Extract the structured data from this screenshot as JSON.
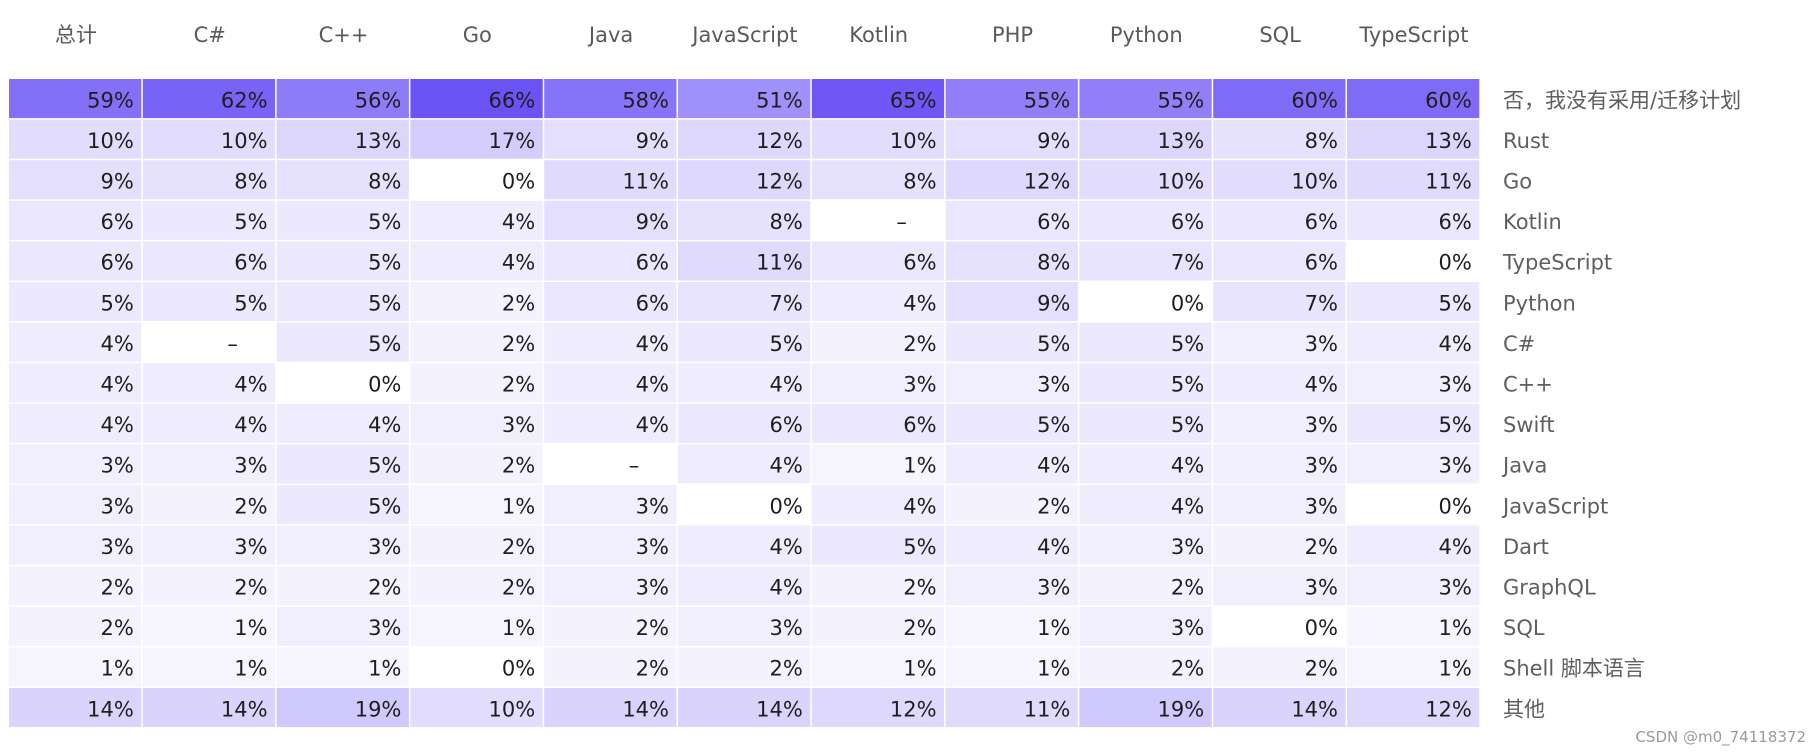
{
  "colors": {
    "scale_high": "#6b52f5",
    "scale_low": "#ffffff",
    "cell_text": "#1e1e1e",
    "header_text": "#5a5a5a",
    "label_text": "#5f5f5f"
  },
  "chart_data": {
    "type": "heatmap",
    "title": "",
    "columns": [
      "总计",
      "C#",
      "C++",
      "Go",
      "Java",
      "JavaScript",
      "Kotlin",
      "PHP",
      "Python",
      "SQL",
      "TypeScript"
    ],
    "rows": [
      {
        "label": "否，我没有采用/迁移计划",
        "values": [
          "59%",
          "62%",
          "56%",
          "66%",
          "58%",
          "51%",
          "65%",
          "55%",
          "55%",
          "60%",
          "60%"
        ]
      },
      {
        "label": "Rust",
        "values": [
          "10%",
          "10%",
          "13%",
          "17%",
          "9%",
          "12%",
          "10%",
          "9%",
          "13%",
          "8%",
          "13%"
        ]
      },
      {
        "label": "Go",
        "values": [
          "9%",
          "8%",
          "8%",
          "0%",
          "11%",
          "12%",
          "8%",
          "12%",
          "10%",
          "10%",
          "11%"
        ]
      },
      {
        "label": "Kotlin",
        "values": [
          "6%",
          "5%",
          "5%",
          "4%",
          "9%",
          "8%",
          "–",
          "6%",
          "6%",
          "6%",
          "6%"
        ]
      },
      {
        "label": "TypeScript",
        "values": [
          "6%",
          "6%",
          "5%",
          "4%",
          "6%",
          "11%",
          "6%",
          "8%",
          "7%",
          "6%",
          "0%"
        ]
      },
      {
        "label": "Python",
        "values": [
          "5%",
          "5%",
          "5%",
          "2%",
          "6%",
          "7%",
          "4%",
          "9%",
          "0%",
          "7%",
          "5%"
        ]
      },
      {
        "label": "C#",
        "values": [
          "4%",
          "–",
          "5%",
          "2%",
          "4%",
          "5%",
          "2%",
          "5%",
          "5%",
          "3%",
          "4%"
        ]
      },
      {
        "label": "C++",
        "values": [
          "4%",
          "4%",
          "0%",
          "2%",
          "4%",
          "4%",
          "3%",
          "3%",
          "5%",
          "4%",
          "3%"
        ]
      },
      {
        "label": "Swift",
        "values": [
          "4%",
          "4%",
          "4%",
          "3%",
          "4%",
          "6%",
          "6%",
          "5%",
          "5%",
          "3%",
          "5%"
        ]
      },
      {
        "label": "Java",
        "values": [
          "3%",
          "3%",
          "5%",
          "2%",
          "–",
          "4%",
          "1%",
          "4%",
          "4%",
          "3%",
          "3%"
        ]
      },
      {
        "label": "JavaScript",
        "values": [
          "3%",
          "2%",
          "5%",
          "1%",
          "3%",
          "0%",
          "4%",
          "2%",
          "4%",
          "3%",
          "0%"
        ]
      },
      {
        "label": "Dart",
        "values": [
          "3%",
          "3%",
          "3%",
          "2%",
          "3%",
          "4%",
          "5%",
          "4%",
          "3%",
          "2%",
          "4%"
        ]
      },
      {
        "label": "GraphQL",
        "values": [
          "2%",
          "2%",
          "2%",
          "2%",
          "3%",
          "4%",
          "2%",
          "3%",
          "2%",
          "3%",
          "3%"
        ]
      },
      {
        "label": "SQL",
        "values": [
          "2%",
          "1%",
          "3%",
          "1%",
          "2%",
          "3%",
          "2%",
          "1%",
          "3%",
          "0%",
          "1%"
        ]
      },
      {
        "label": "Shell 脚本语言",
        "values": [
          "1%",
          "1%",
          "1%",
          "0%",
          "2%",
          "2%",
          "1%",
          "1%",
          "2%",
          "2%",
          "1%"
        ]
      },
      {
        "label": "其他",
        "values": [
          "14%",
          "14%",
          "19%",
          "10%",
          "14%",
          "14%",
          "12%",
          "11%",
          "19%",
          "14%",
          "12%"
        ]
      }
    ]
  },
  "watermark": "CSDN @m0_74118372"
}
